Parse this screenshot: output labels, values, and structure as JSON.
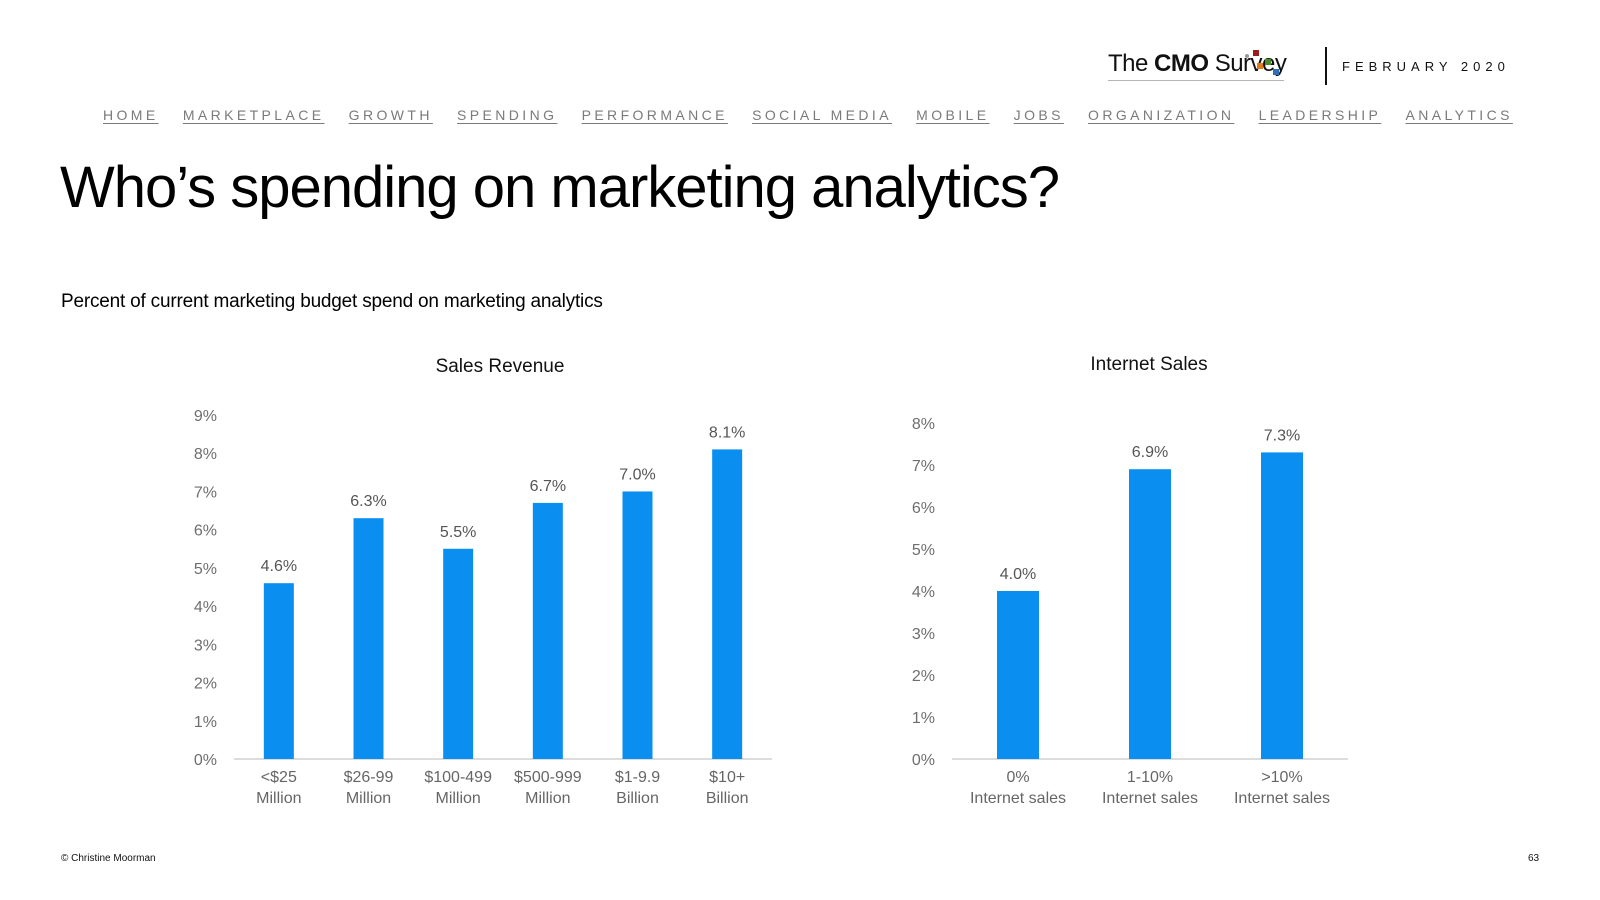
{
  "brand": {
    "name_prefix": "The ",
    "name_bold": "CMO",
    "name_suffix": " Survey",
    "date": "FEBRUARY 2020",
    "colors": {
      "red": "#9b1c1c",
      "green": "#4a8a2a",
      "orange": "#e07b1a",
      "blue": "#2e6fb5",
      "gray": "#9a9a9a"
    }
  },
  "nav": {
    "items": [
      "HOME",
      "MARKETPLACE",
      "GROWTH",
      "SPENDING",
      "PERFORMANCE",
      "SOCIAL MEDIA",
      "MOBILE",
      "JOBS",
      "ORGANIZATION",
      "LEADERSHIP",
      "ANALYTICS"
    ]
  },
  "page": {
    "title": "Who’s spending on marketing analytics?",
    "subtitle": "Percent of current marketing budget spend on marketing analytics"
  },
  "chart_data": [
    {
      "type": "bar",
      "title": "Sales Revenue",
      "categories": [
        [
          "<$25",
          "Million"
        ],
        [
          "$26-99",
          "Million"
        ],
        [
          "$100-499",
          "Million"
        ],
        [
          "$500-999",
          "Million"
        ],
        [
          "$1-9.9",
          "Billion"
        ],
        [
          "$10+",
          "Billion"
        ]
      ],
      "values": [
        4.6,
        6.3,
        5.5,
        6.7,
        7.0,
        8.1
      ],
      "value_labels": [
        "4.6%",
        "6.3%",
        "5.5%",
        "6.7%",
        "7.0%",
        "8.1%"
      ],
      "yticks": [
        "0%",
        "1%",
        "2%",
        "3%",
        "4%",
        "5%",
        "6%",
        "7%",
        "8%",
        "9%"
      ],
      "ylim": [
        0,
        9
      ],
      "xlabel": "",
      "ylabel": "",
      "color": "#0a8ff0"
    },
    {
      "type": "bar",
      "title": "Internet Sales",
      "categories": [
        [
          "0%",
          "Internet sales"
        ],
        [
          "1-10%",
          "Internet sales"
        ],
        [
          ">10%",
          "Internet sales"
        ]
      ],
      "values": [
        4.0,
        6.9,
        7.3
      ],
      "value_labels": [
        "4.0%",
        "6.9%",
        "7.3%"
      ],
      "yticks": [
        "0%",
        "1%",
        "2%",
        "3%",
        "4%",
        "5%",
        "6%",
        "7%",
        "8%"
      ],
      "ylim": [
        0,
        8
      ],
      "xlabel": "",
      "ylabel": "",
      "color": "#0a8ff0"
    }
  ],
  "footer": {
    "copyright": "© Christine Moorman",
    "page_number": "63"
  }
}
